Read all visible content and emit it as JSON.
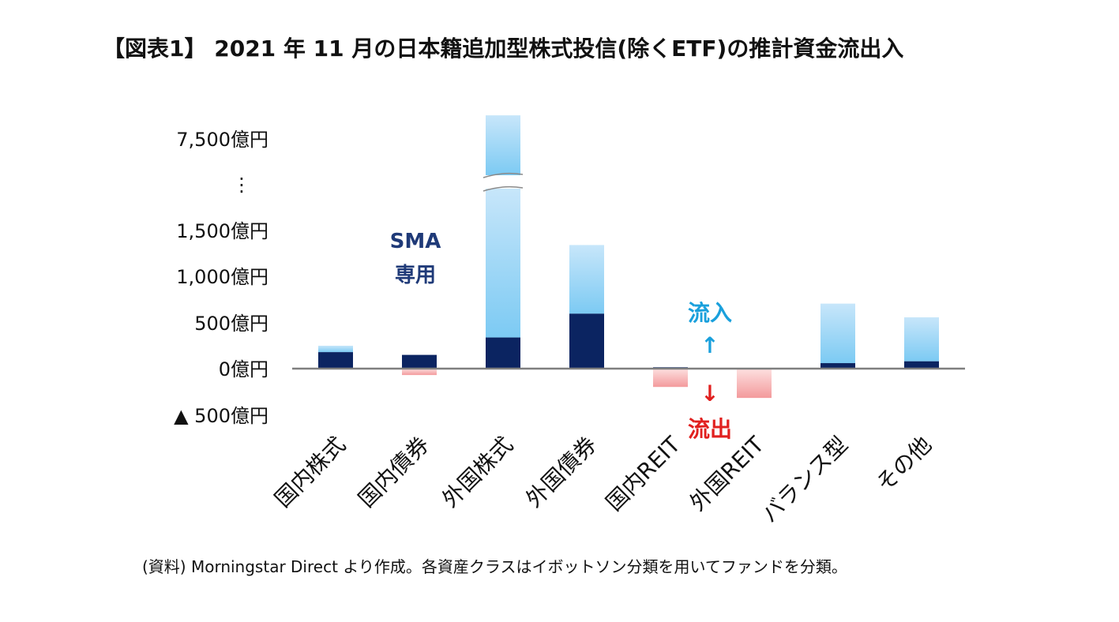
{
  "chart_data": {
    "type": "bar",
    "title": "【図表1】 2021 年 11 月の日本籍追加型株式投信(除くETF)の推計資金流出入",
    "categories": [
      "国内株式",
      "国内債券",
      "外国株式",
      "外国債券",
      "国内REIT",
      "外国REIT",
      "バランス型",
      "その他"
    ],
    "series": [
      {
        "name": "SMA専用",
        "values": [
          180,
          150,
          340,
          600,
          15,
          5,
          60,
          80
        ]
      },
      {
        "name": "",
        "values": [
          70,
          -70,
          7670,
          750,
          -200,
          -320,
          650,
          480
        ]
      }
    ],
    "ytick_labels": [
      "7,500億円",
      "⋮",
      "1,500億円",
      "1,000億円",
      "500億円",
      "0億円",
      "▲ 500億円"
    ],
    "axis_break": {
      "lower_max": 1750,
      "upper_min": 7200
    },
    "ylim": [
      -500,
      8150
    ],
    "grid": false,
    "legend": "none",
    "annotations": {
      "sma_label_line1": "SMA",
      "sma_label_line2": "専用",
      "inflow_label": "流入",
      "inflow_arrow": "↑",
      "outflow_arrow": "↓",
      "outflow_label": "流出"
    },
    "source": "(資料) Morningstar Direct より作成。各資産クラスはイボットソン分類を用いてファンドを分類。"
  },
  "colors": {
    "sma": "#0b2461",
    "inflow_light": "#c7e6fa",
    "inflow_dark": "#7ccaf3",
    "outflow_light": "#fde0e0",
    "outflow_dark": "#f39a9c",
    "axis": "#7f7f7f",
    "sma_text": "#1f3a78",
    "inflow_text": "#1aa0dc",
    "outflow_text": "#e1201f"
  }
}
